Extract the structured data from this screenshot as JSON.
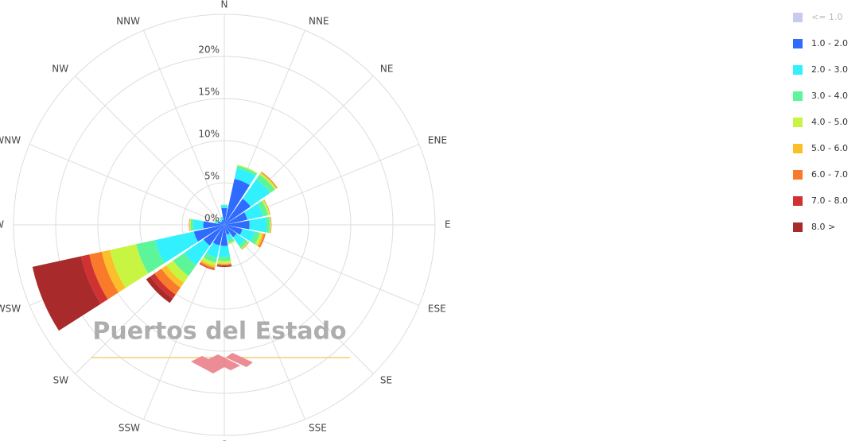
{
  "chart_data": {
    "type": "windrose",
    "watermark": "Puertos del Estado",
    "categories": [
      "N",
      "NNE",
      "NE",
      "ENE",
      "E",
      "ESE",
      "SE",
      "SSE",
      "S",
      "SSW",
      "SW",
      "WSW",
      "W",
      "WNW",
      "NW",
      "NNW"
    ],
    "ylim": [
      0,
      25
    ],
    "yticks": [
      {
        "value": 0,
        "label": "0%"
      },
      {
        "value": 5,
        "label": "5%"
      },
      {
        "value": 10,
        "label": "10%"
      },
      {
        "value": 15,
        "label": "15%"
      },
      {
        "value": 20,
        "label": "20%"
      }
    ],
    "grid": true,
    "legend": "right",
    "series": [
      {
        "name": "<= 1.0",
        "color": "#b4b4ea",
        "visible": false
      },
      {
        "name": "1.0 - 2.0",
        "color": "#2f6bff",
        "values": [
          2.0,
          5.6,
          3.8,
          2.8,
          3.0,
          2.2,
          1.8,
          1.2,
          2.5,
          2.5,
          3.0,
          3.7,
          2.5,
          0.8,
          0.5,
          0.6
        ]
      },
      {
        "name": "2.0 - 3.0",
        "color": "#33f0ff",
        "values": [
          0.3,
          1.3,
          2.8,
          1.9,
          2.0,
          1.5,
          1.2,
          0.7,
          1.3,
          1.5,
          2.8,
          4.7,
          1.2,
          0.3,
          0.2,
          0.3
        ]
      },
      {
        "name": "3.0 - 4.0",
        "color": "#5cf59a",
        "values": [
          0.1,
          0.3,
          0.7,
          0.6,
          0.4,
          0.6,
          0.4,
          0.3,
          0.5,
          0.6,
          1.6,
          2.3,
          0.3,
          0.1,
          0.05,
          0.1
        ]
      },
      {
        "name": "4.0 - 5.0",
        "color": "#c8f542",
        "values": [
          0,
          0.1,
          0.2,
          0.2,
          0.1,
          0.3,
          0.1,
          0.1,
          0.3,
          0.4,
          1.0,
          3.2,
          0.1,
          0.05,
          0,
          0
        ]
      },
      {
        "name": "5.0 - 6.0",
        "color": "#fbbf2a",
        "values": [
          0,
          0,
          0.1,
          0.05,
          0.05,
          0.2,
          0.05,
          0.05,
          0.1,
          0.2,
          0.7,
          1.0,
          0.05,
          0,
          0,
          0
        ]
      },
      {
        "name": "6.0 - 7.0",
        "color": "#f97a2a",
        "values": [
          0,
          0,
          0.1,
          0.05,
          0.05,
          0.2,
          0.05,
          0,
          0.1,
          0.2,
          1.0,
          1.5,
          0.05,
          0,
          0,
          0
        ]
      },
      {
        "name": "7.0 - 8.0",
        "color": "#d03232",
        "values": [
          0,
          0,
          0,
          0,
          0,
          0,
          0,
          0,
          0.1,
          0.1,
          0.6,
          1.0,
          0,
          0,
          0,
          0
        ]
      },
      {
        "name": "8.0 >",
        "color": "#a82a2a",
        "values": [
          0,
          0,
          0,
          0,
          0,
          0,
          0,
          0,
          0.1,
          0,
          0.6,
          5.9,
          0,
          0,
          0,
          0
        ]
      }
    ]
  }
}
